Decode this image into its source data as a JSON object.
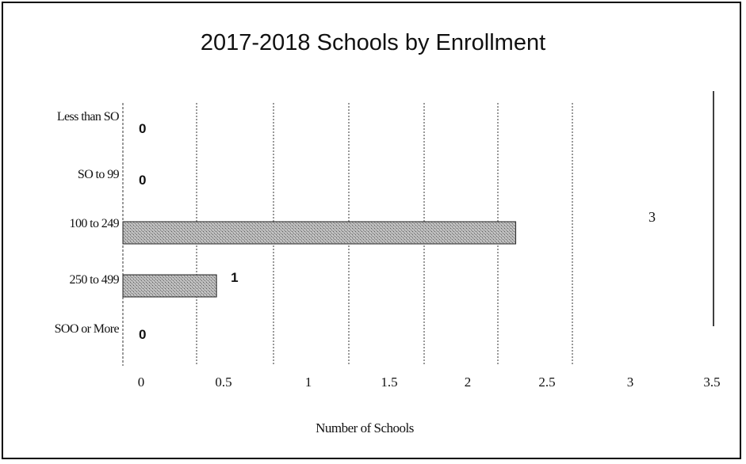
{
  "chart_data": {
    "type": "bar",
    "orientation": "horizontal",
    "title": "2017-2018 Schools by Enrollment",
    "xlabel": "Number of Schools",
    "ylabel": "",
    "categories": [
      "Less than SO",
      "SO to 99",
      "100 to 249",
      "250 to 499",
      "SOO or More"
    ],
    "values": [
      0,
      0,
      3,
      1,
      0
    ],
    "data_labels": [
      "0",
      "0",
      "3",
      "1",
      "0"
    ],
    "xlim": [
      0,
      3.5
    ],
    "xticks": [
      "0",
      "0.5",
      "1",
      "1.5",
      "2",
      "2.5",
      "3",
      "3.5"
    ],
    "grid": true,
    "bar_color": "#a3a3a3"
  }
}
